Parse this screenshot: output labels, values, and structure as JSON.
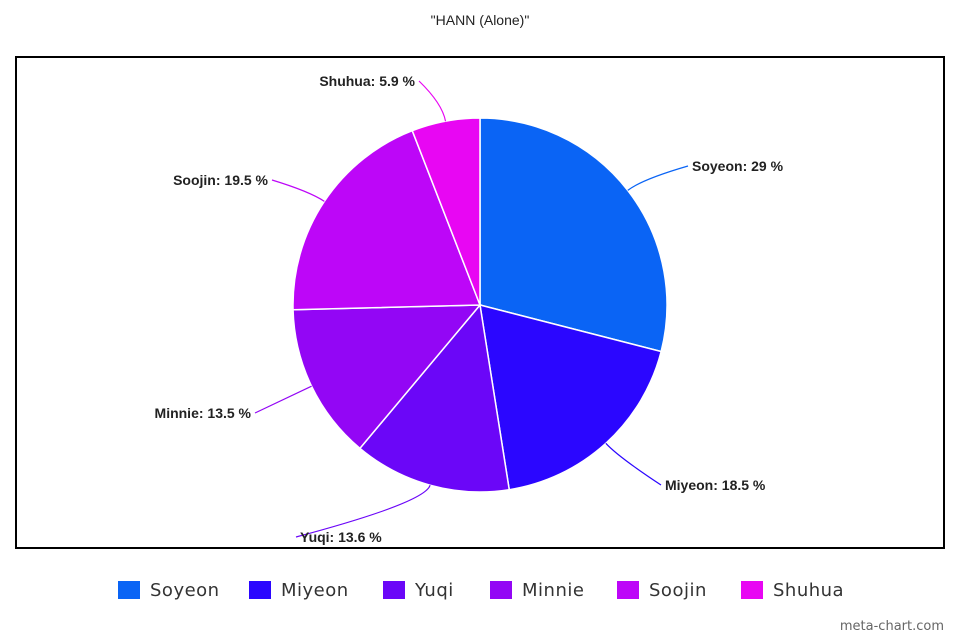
{
  "chart_data": {
    "type": "pie",
    "title": "\"HANN (Alone)\"",
    "slices": [
      {
        "name": "Soyeon",
        "value": 29,
        "label": "Soyeon: 29 %",
        "color": "#0a64f5"
      },
      {
        "name": "Miyeon",
        "value": 18.5,
        "label": "Miyeon: 18.5 %",
        "color": "#2b06ff"
      },
      {
        "name": "Yuqi",
        "value": 13.6,
        "label": "Yuqi: 13.6 %",
        "color": "#6b06f8"
      },
      {
        "name": "Minnie",
        "value": 13.5,
        "label": "Minnie: 13.5 %",
        "color": "#9306f5"
      },
      {
        "name": "Soojin",
        "value": 19.5,
        "label": "Soojin: 19.5 %",
        "color": "#bd06f8"
      },
      {
        "name": "Shuhua",
        "value": 5.9,
        "label": "Shuhua: 5.9 %",
        "color": "#e806f3"
      }
    ],
    "legend_placement": "bottom"
  },
  "watermark": "meta-chart.com"
}
